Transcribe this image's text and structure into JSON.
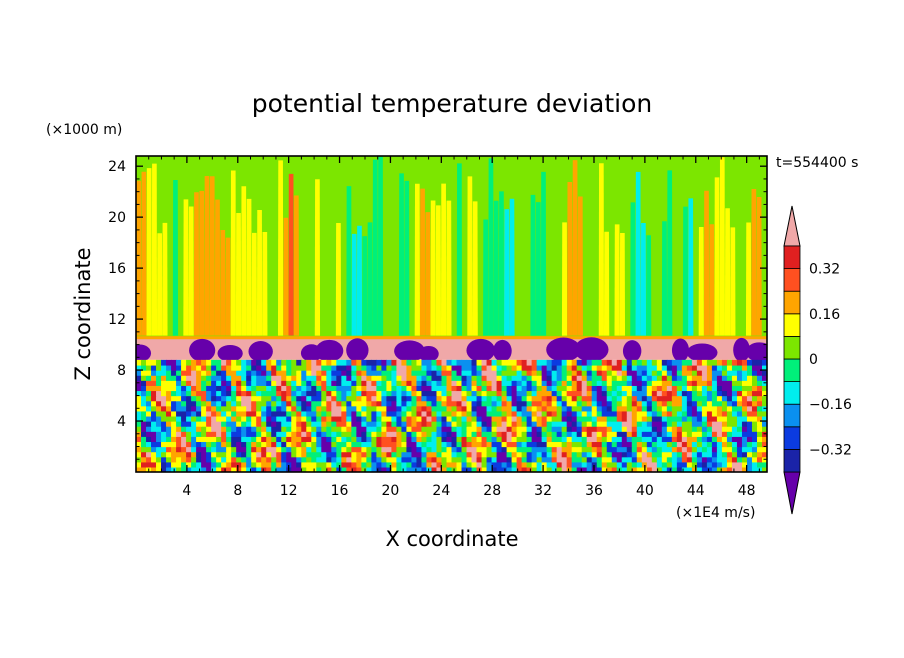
{
  "chart_data": {
    "type": "heatmap",
    "title": "potential temperature deviation",
    "xlabel": "X coordinate",
    "ylabel": "Z coordinate",
    "x_unit": "(×1E4 m/s)",
    "y_unit": "(×1000 m)",
    "time_label": "t=554400 s",
    "x_ticks": [
      4,
      8,
      12,
      16,
      20,
      24,
      28,
      32,
      36,
      40,
      44,
      48
    ],
    "y_ticks": [
      4,
      8,
      12,
      16,
      20,
      24
    ],
    "xlim": [
      0,
      49.6
    ],
    "ylim": [
      0,
      24.8
    ],
    "colorbar": {
      "tick_labels": [
        "0.32",
        "0.16",
        "0",
        "−0.16",
        "−0.32"
      ],
      "tick_values": [
        0.32,
        0.16,
        0,
        -0.16,
        -0.32
      ],
      "levels": [
        -0.4,
        -0.32,
        -0.24,
        -0.16,
        -0.08,
        0,
        0.08,
        0.16,
        0.24,
        0.32,
        0.4
      ],
      "colors": [
        "#6600AA",
        "#1A23A8",
        "#0B3BE0",
        "#0A90F0",
        "#00EEEE",
        "#00F07A",
        "#7CE600",
        "#FFFF00",
        "#FFA500",
        "#FF5020",
        "#E02020",
        "#F0A8A8"
      ]
    },
    "field_summary": {
      "upper_layer_z": [
        10.5,
        24.8
      ],
      "upper_layer_dominant_value": 0.04,
      "inversion_band_z": [
        8.8,
        10.5
      ],
      "inversion_band_value": 0.4,
      "turbulent_layer_z": [
        0,
        8.8
      ]
    }
  }
}
